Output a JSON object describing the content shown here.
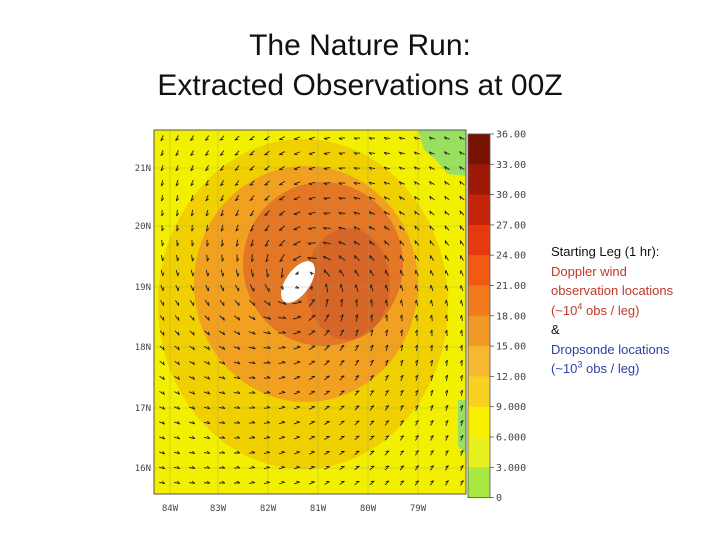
{
  "title": {
    "line1": "The Nature Run:",
    "line2": "Extracted Observations at 00Z"
  },
  "map": {
    "lat_labels": [
      "21N",
      "20N",
      "19N",
      "18N",
      "17N",
      "16N"
    ],
    "lon_labels": [
      "84W",
      "83W",
      "82W",
      "81W",
      "80W",
      "79W"
    ],
    "colorbar_labels": [
      "36.00",
      "33.00",
      "30.00",
      "27.00",
      "24.00",
      "21.00",
      "18.00",
      "15.00",
      "12.00",
      "9.000",
      "6.000",
      "3.000",
      "0"
    ],
    "colorbar_colors": [
      "#7a1202",
      "#9e1a06",
      "#c42408",
      "#e53a10",
      "#f25a14",
      "#f27a1c",
      "#f29a26",
      "#f6b830",
      "#f8d020",
      "#f8f000",
      "#e8f020",
      "#a8e840",
      "#ffffff"
    ],
    "field_colors": {
      "outer": "#f2f000",
      "mid": "#f0d000",
      "orange": "#f2a020",
      "core": "#e07028",
      "max": "#cc5a28",
      "land": "#9ae060",
      "eye": "#ffffff"
    }
  },
  "note": {
    "heading": "Starting Leg (1 hr):",
    "doppler_1": "Doppler wind",
    "doppler_2": "observation locations",
    "doppler_3_pre": "(~10",
    "doppler_3_sup": "4",
    "doppler_3_post": " obs / leg)",
    "amp": "&",
    "drop_1": "Dropsonde locations",
    "drop_2_pre": "(~10",
    "drop_2_sup": "3",
    "drop_2_post": " obs / leg)"
  }
}
